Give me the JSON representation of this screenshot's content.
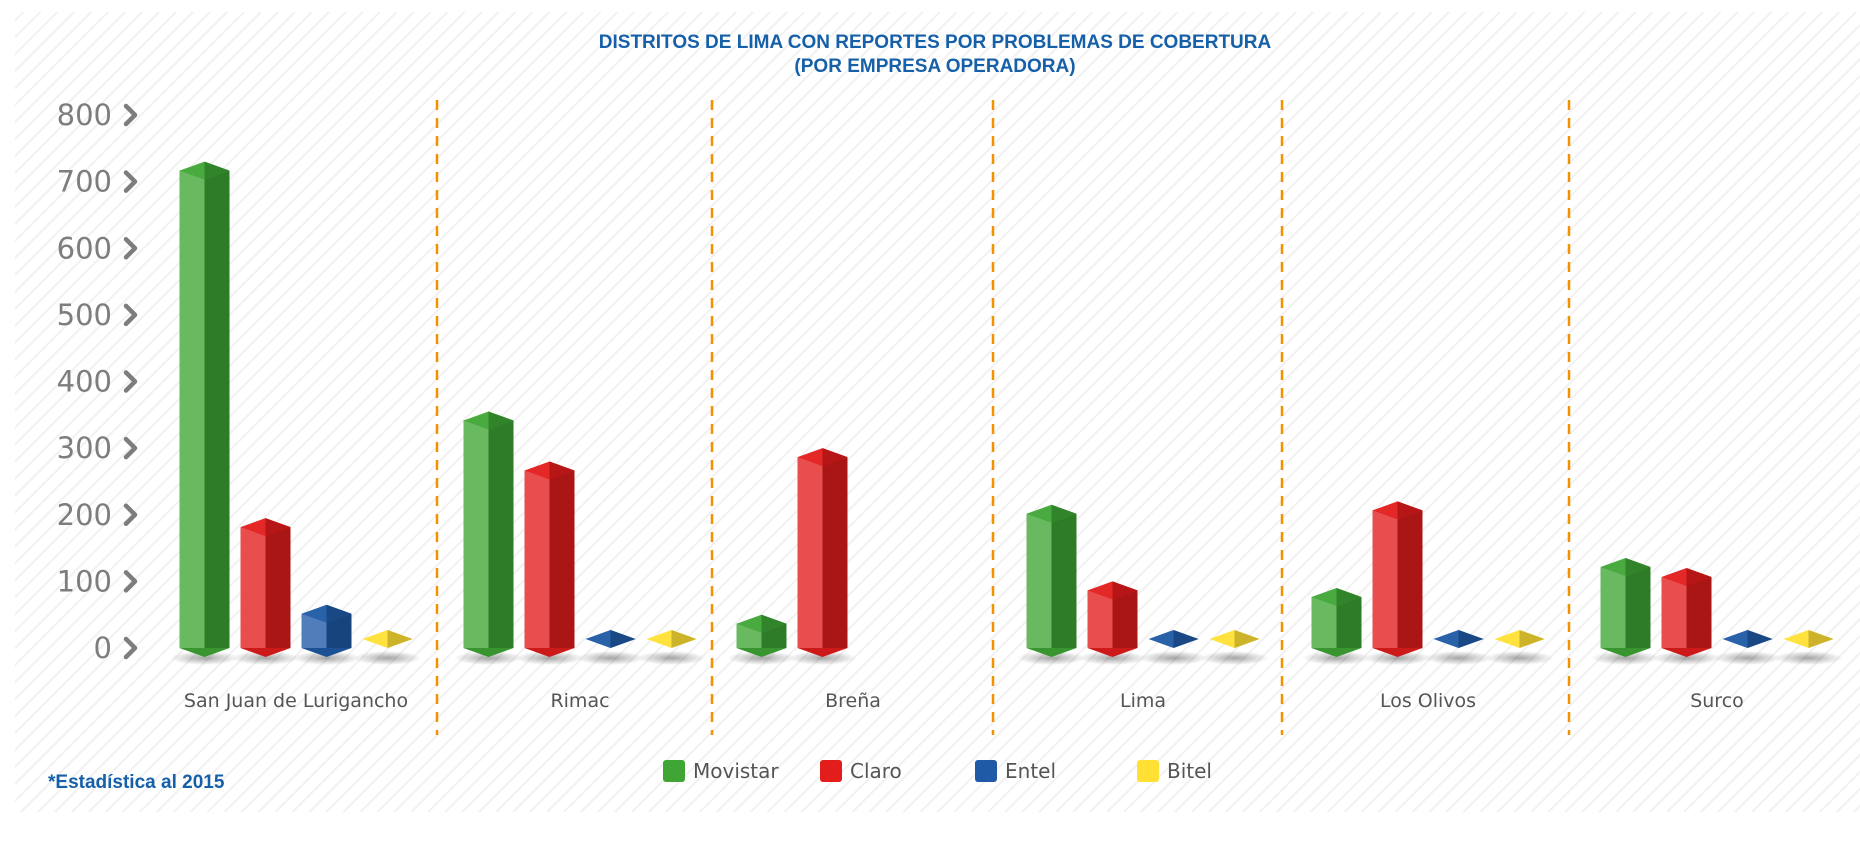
{
  "chart_data": {
    "type": "bar",
    "title": "DISTRITOS DE LIMA CON REPORTES POR PROBLEMAS DE COBERTURA",
    "subtitle": "(POR EMPRESA OPERADORA)",
    "categories": [
      "San Juan de Lurigancho",
      "Rimac",
      "Breña",
      "Lima",
      "Los Olivos",
      "Surco"
    ],
    "series": [
      {
        "name": "Movistar",
        "color": "#3fa535",
        "values": [
          730,
          355,
          50,
          215,
          90,
          135
        ]
      },
      {
        "name": "Claro",
        "color": "#e31c1c",
        "values": [
          195,
          280,
          300,
          100,
          220,
          120
        ]
      },
      {
        "name": "Entel",
        "color": "#1f5aa6",
        "values": [
          65,
          15,
          null,
          15,
          15,
          15
        ]
      },
      {
        "name": "Bitel",
        "color": "#ffe033",
        "values": [
          20,
          15,
          null,
          15,
          15,
          15
        ]
      }
    ],
    "yticks": [
      "800",
      "700",
      "600",
      "500",
      "400",
      "300",
      "200",
      "100",
      "0"
    ],
    "ylim": [
      0,
      800
    ],
    "grid": false,
    "legend": "bottom-center",
    "note": "*Estadística al 2015"
  }
}
